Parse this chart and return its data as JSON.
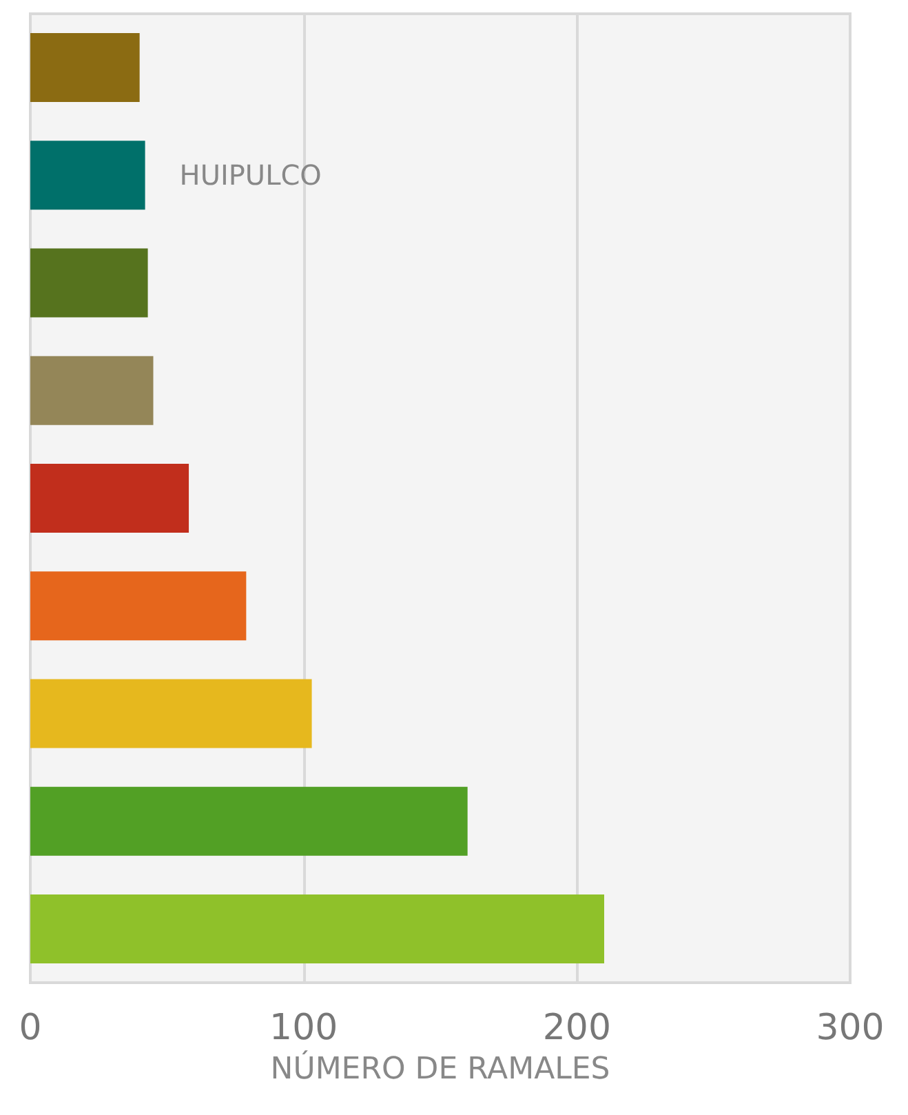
{
  "chart_data": {
    "type": "bar",
    "orientation": "horizontal",
    "xlabel": "NÚMERO DE RAMALES",
    "categories": [
      null,
      null,
      null,
      null,
      null,
      null,
      null,
      null,
      null
    ],
    "values": [
      40,
      42,
      43,
      45,
      58,
      79,
      103,
      160,
      210
    ],
    "colors": [
      "#8b6b12",
      "#00706a",
      "#56731e",
      "#948658",
      "#c12e1c",
      "#e6661c",
      "#e6b81e",
      "#52a025",
      "#8fc12a"
    ],
    "xlim": [
      0,
      300
    ],
    "xticks": [
      0,
      100,
      200,
      300
    ],
    "grid": "x",
    "annotations": [
      "HUIPULCO"
    ]
  }
}
